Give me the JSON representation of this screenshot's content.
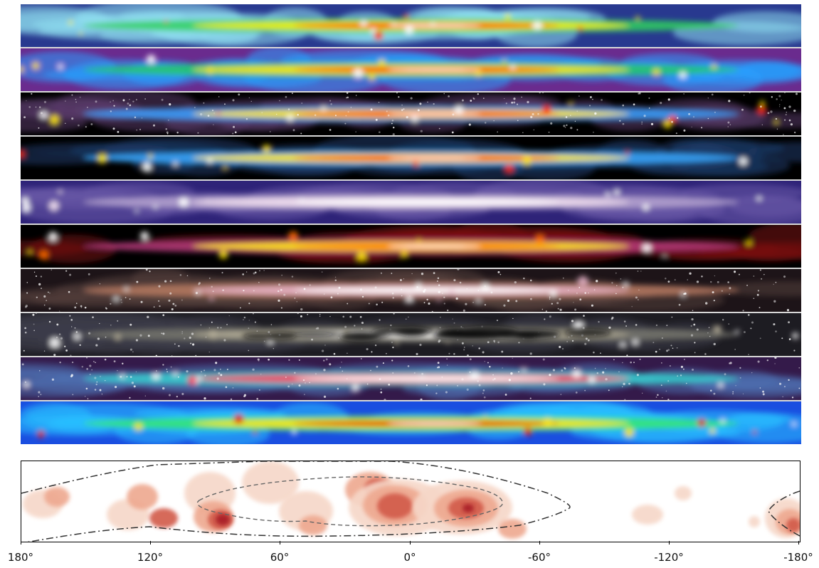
{
  "axis": {
    "tick_labels": [
      "180°",
      "120°",
      "60°",
      "0°",
      "-60°",
      "-120°",
      "-180°"
    ],
    "tick_values": [
      180,
      120,
      60,
      0,
      -60,
      -120,
      -180
    ]
  },
  "panels": [
    {
      "colors": [
        "#28398f",
        "#8fe0f0",
        "#2fd05f",
        "#f5f000",
        "#ff2a00",
        "#ffffff"
      ]
    },
    {
      "colors": [
        "#6a2b8e",
        "#27a1ff",
        "#25c866",
        "#ffe600",
        "#ff2a00",
        "#ffffff"
      ]
    },
    {
      "colors": [
        "#000000",
        "#5a3a6a",
        "#3aa0ff",
        "#ffe600",
        "#ff2a00",
        "#ffffff"
      ]
    },
    {
      "colors": [
        "#000000",
        "#1d3c6a",
        "#39a8ff",
        "#ffe600",
        "#ff2a00",
        "#ffffff"
      ]
    },
    {
      "colors": [
        "#2e2378",
        "#6a5aa8",
        "#b6a4d0",
        "#f4e2f0",
        "#ffffff",
        "#ffffff"
      ]
    },
    {
      "colors": [
        "#000000",
        "#7a1010",
        "#b53a7a",
        "#ffe600",
        "#ff6a00",
        "#ffffff"
      ]
    },
    {
      "colors": [
        "#1d1418",
        "#53403c",
        "#b87b63",
        "#e8b4c8",
        "#ffffff",
        "#ffffff"
      ]
    },
    {
      "colors": [
        "#1d1c22",
        "#3d3d48",
        "#77776e",
        "#b8b09a",
        "#ffffff",
        "#ffffff"
      ]
    },
    {
      "colors": [
        "#341a4a",
        "#4d6fb0",
        "#35cfcf",
        "#ff3b5b",
        "#ffffff",
        "#ffffff"
      ]
    },
    {
      "colors": [
        "#1a4ee0",
        "#28c0ff",
        "#35e870",
        "#ffe600",
        "#e21400",
        "#ffffff"
      ]
    }
  ],
  "contour_colors": [
    "#f6d7c8",
    "#eea88f",
    "#d25a4a",
    "#a81d26"
  ]
}
